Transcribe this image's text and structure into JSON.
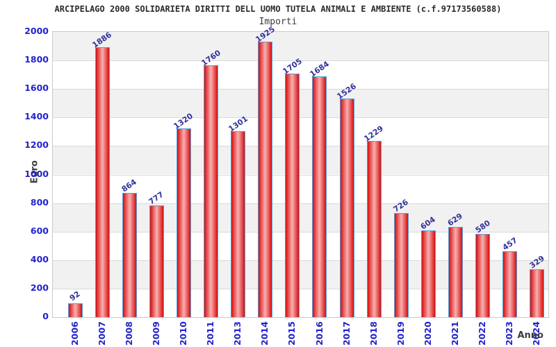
{
  "title": "ARCIPELAGO 2000 SOLIDARIETA DIRITTI DELL UOMO TUTELA ANIMALI E AMBIENTE (c.f.97173560588)",
  "subtitle": "Importi",
  "colors": {
    "bar_edge": "#d40f0f",
    "bar_mid": "#e85555",
    "bar_center": "#f7b0b0",
    "bar_border": "#55a0dd",
    "band_gray": "#f1f1f1",
    "grid": "#d9d9d9",
    "tick_blue": "#2323cc",
    "value_navy": "#32329b",
    "axis_title_gray": "#3c3c3c"
  },
  "chart_data": {
    "type": "bar",
    "title": "ARCIPELAGO 2000 SOLIDARIETA DIRITTI DELL UOMO TUTELA ANIMALI E AMBIENTE (c.f.97173560588)",
    "subtitle": "Importi",
    "xlabel": "Anno",
    "ylabel": "Euro",
    "ylim": [
      0,
      2000
    ],
    "ytick_step": 200,
    "grid": "banded",
    "legend": "none",
    "categories": [
      "2006",
      "2007",
      "2008",
      "2009",
      "2010",
      "2011",
      "2013",
      "2014",
      "2015",
      "2016",
      "2017",
      "2018",
      "2019",
      "2020",
      "2021",
      "2022",
      "2023",
      "2024"
    ],
    "values": [
      92,
      1886,
      864,
      777,
      1320,
      1760,
      1301,
      1925,
      1705,
      1684,
      1526,
      1229,
      726,
      604,
      629,
      580,
      457,
      329
    ]
  }
}
